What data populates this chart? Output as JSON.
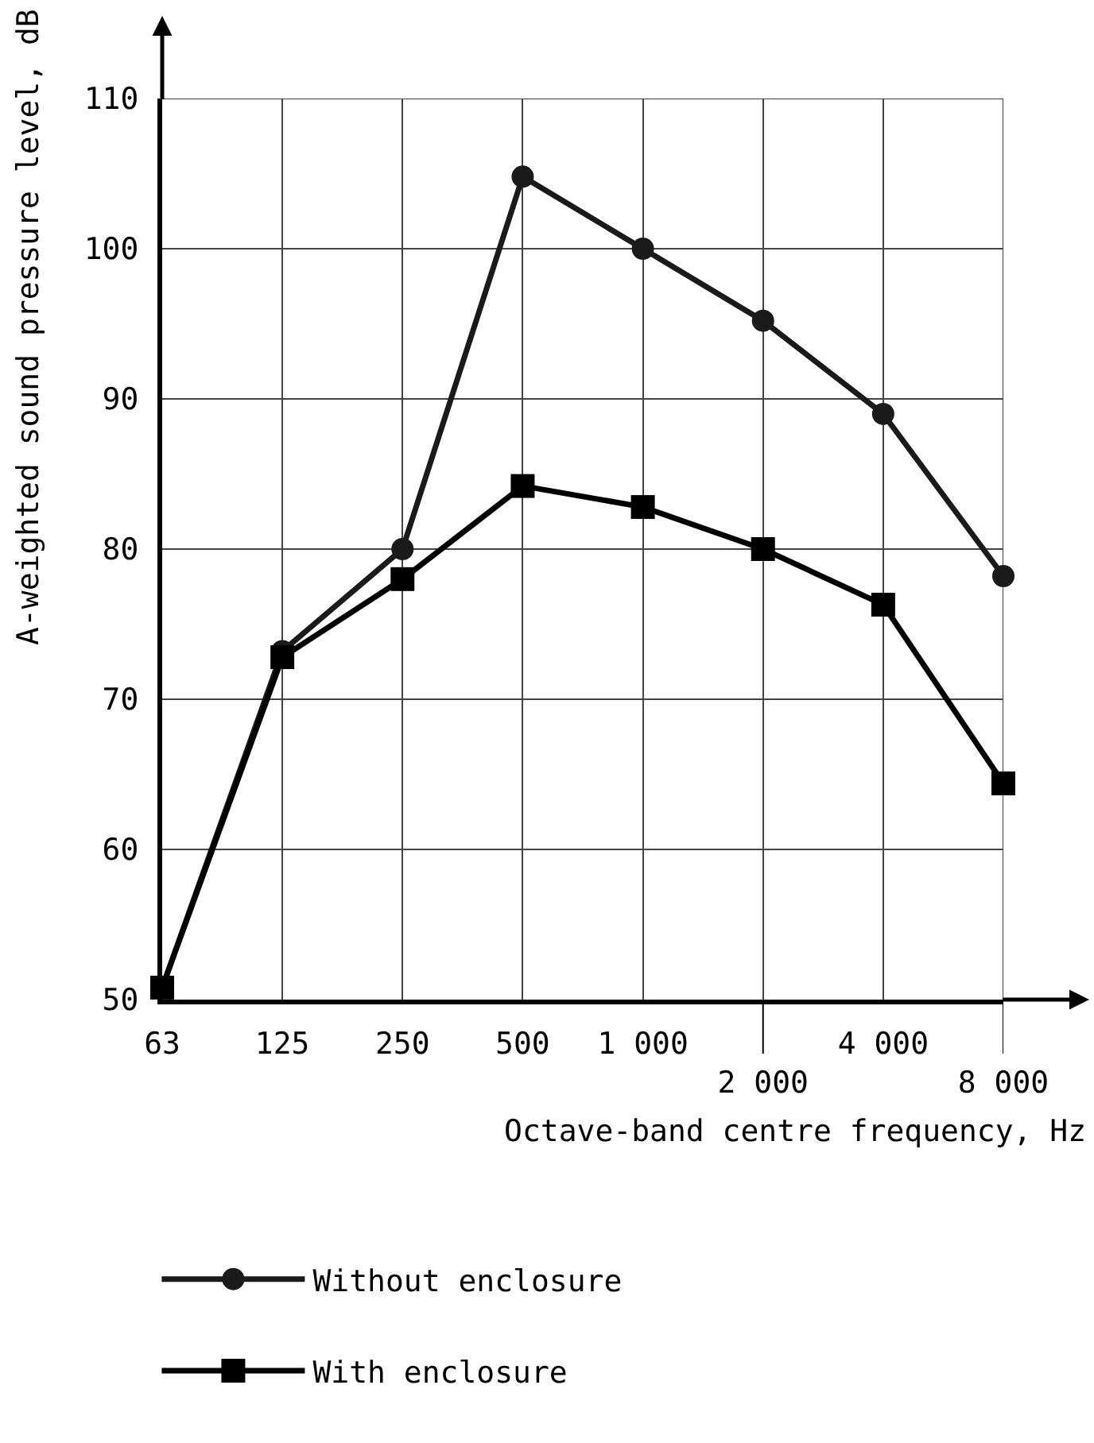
{
  "chart_data": {
    "type": "line",
    "xlabel": "Octave-band centre frequency, Hz",
    "ylabel": "A-weighted sound pressure level, dB",
    "categories": [
      "63",
      "125",
      "250",
      "500",
      "1 000",
      "2 000",
      "4 000",
      "8 000"
    ],
    "ylim": [
      50,
      110
    ],
    "yticks": [
      50,
      60,
      70,
      80,
      90,
      100,
      110
    ],
    "grid": true,
    "legend": "bottom left",
    "line_style": "solid",
    "series": [
      {
        "name": "Without enclosure",
        "color": "#1a1a1a",
        "marker": "circle",
        "values": [
          50.8,
          73.2,
          80,
          104.8,
          100,
          95.2,
          89,
          78.2
        ]
      },
      {
        "name": "With enclosure",
        "color": "#000000",
        "marker": "square",
        "values": [
          50.8,
          72.8,
          78,
          84.2,
          82.8,
          80,
          76.3,
          64.4
        ]
      }
    ]
  }
}
